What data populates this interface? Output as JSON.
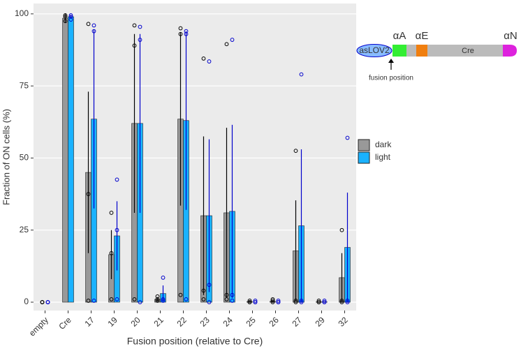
{
  "chart_data": {
    "type": "bar",
    "y_label": "Fraction of ON cells (%)",
    "x_label": "Fusion position (relative to Cre)",
    "categories": [
      "empty",
      "Cre",
      "17",
      "19",
      "20",
      "21",
      "22",
      "23",
      "24",
      "25",
      "26",
      "27",
      "29",
      "32"
    ],
    "ylim": [
      -2.9,
      103.6
    ],
    "yticks": [
      0,
      25,
      50,
      75,
      100
    ],
    "grid": true,
    "series": [
      {
        "name": "dark",
        "color": "#999999",
        "error_color": "#000000",
        "values": [
          0,
          98.5,
          45,
          16.5,
          62,
          1,
          63.5,
          30,
          31,
          0.2,
          0.3,
          17.8,
          0.1,
          8.5
        ],
        "errors": [
          0,
          1.5,
          28,
          8.5,
          31,
          0.8,
          30,
          27.5,
          29.5,
          0.2,
          0.4,
          17.5,
          0.1,
          8.5
        ],
        "points": [
          [
            0,
            0,
            0
          ],
          [
            99.5,
            99,
            97.5
          ],
          [
            96.5,
            37.5,
            0.5
          ],
          [
            31,
            17,
            1
          ],
          [
            96,
            89,
            1
          ],
          [
            2,
            1,
            0.5
          ],
          [
            95,
            93,
            2.5
          ],
          [
            84.5,
            4,
            1
          ],
          [
            89.5,
            2.5,
            1
          ],
          [
            0.5,
            0,
            0
          ],
          [
            1,
            0.5,
            0
          ],
          [
            52.5,
            0.5,
            0
          ],
          [
            0.5,
            0,
            0
          ],
          [
            25,
            0.5,
            0
          ]
        ]
      },
      {
        "name": "light",
        "color": "#1ab2ff",
        "error_color": "#0000cc",
        "values": [
          0,
          99,
          63.5,
          23,
          62,
          3,
          63,
          30,
          31.5,
          0,
          0,
          26.5,
          0.1,
          19
        ],
        "errors": [
          0,
          0.5,
          31,
          12,
          31,
          2.8,
          31,
          26.5,
          30,
          0,
          0,
          26.5,
          0.1,
          19
        ],
        "points": [
          [
            0,
            0,
            0
          ],
          [
            99.5,
            99,
            98
          ],
          [
            96,
            94,
            0.5
          ],
          [
            42.5,
            25,
            1
          ],
          [
            95.5,
            91,
            0
          ],
          [
            8.5,
            1,
            0.5
          ],
          [
            94,
            93,
            1
          ],
          [
            83.5,
            6,
            0
          ],
          [
            91,
            2.5,
            0.5
          ],
          [
            0.5,
            0,
            0
          ],
          [
            0.5,
            0,
            0
          ],
          [
            79,
            0.5,
            0
          ],
          [
            0.5,
            0,
            0
          ],
          [
            57,
            0.5,
            0
          ]
        ]
      }
    ]
  },
  "diagram": {
    "lov": "asLOV2",
    "helix_a": "αA",
    "helix_e": "αE",
    "cre": "Cre",
    "helix_n": "αN",
    "arrow_label": "fusion position"
  }
}
